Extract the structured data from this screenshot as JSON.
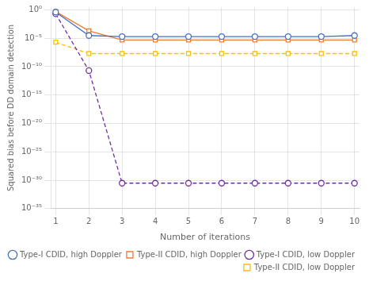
{
  "chart_data": {
    "type": "line",
    "xlabel": "Number of iterations",
    "ylabel": "Squared bias before DD domain detection",
    "x": [
      1,
      2,
      3,
      4,
      5,
      6,
      7,
      8,
      9,
      10
    ],
    "series": [
      {
        "name": "Type-I CDID, high Doppler",
        "color": "#4472C4",
        "marker": "circle",
        "line_style": "solid",
        "values": [
          0.4,
          3e-05,
          2e-05,
          2e-05,
          2e-05,
          2e-05,
          2e-05,
          2e-05,
          2e-05,
          3e-05
        ]
      },
      {
        "name": "Type-II CDID, high Doppler",
        "color": "#ED7D31",
        "marker": "square",
        "line_style": "solid",
        "values": [
          0.5,
          0.0002,
          5e-06,
          5e-06,
          5e-06,
          5e-06,
          5e-06,
          5e-06,
          5e-06,
          5e-06
        ]
      },
      {
        "name": "Type-I CDID, low Doppler",
        "color": "#7030A0",
        "marker": "circle",
        "line_style": "dashed",
        "values": [
          0.2,
          2e-11,
          3e-31,
          3e-31,
          3e-31,
          3e-31,
          3e-31,
          3e-31,
          3e-31,
          3e-31
        ]
      },
      {
        "name": "Type-II CDID, low Doppler",
        "color": "#FFC000",
        "marker": "square",
        "line_style": "dashed",
        "values": [
          2e-06,
          2e-08,
          2e-08,
          2e-08,
          2e-08,
          2e-08,
          2e-08,
          2e-08,
          2e-08,
          2e-08
        ]
      }
    ],
    "xlim": [
      0.85,
      10.15
    ],
    "xticks": [
      1,
      2,
      3,
      4,
      5,
      6,
      7,
      8,
      9,
      10
    ],
    "ylim": [
      1e-35,
      3.0
    ],
    "yticks": [
      {
        "value": 1,
        "label": "10⁰"
      },
      {
        "value": 1e-05,
        "label": "10⁻⁵"
      },
      {
        "value": 1e-10,
        "label": "10⁻¹⁰"
      },
      {
        "value": 1e-15,
        "label": "10⁻¹⁵"
      },
      {
        "value": 1e-20,
        "label": "10⁻²⁰"
      },
      {
        "value": 1e-25,
        "label": "10⁻²⁵"
      },
      {
        "value": 1e-30,
        "label": "10⁻³⁰"
      },
      {
        "value": 1e-35,
        "label": "10⁻³⁵"
      }
    ],
    "log": "y",
    "grid": true,
    "legend": "lower right"
  }
}
